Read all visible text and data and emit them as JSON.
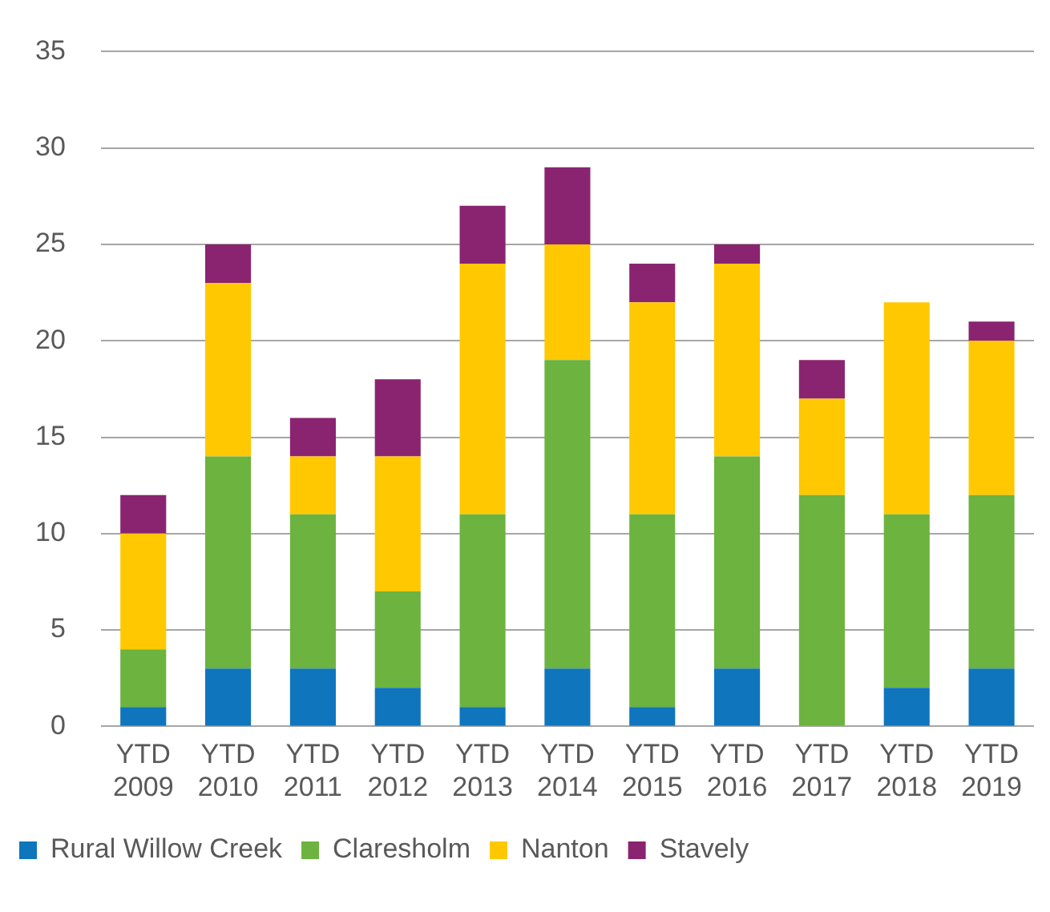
{
  "chart_data": {
    "type": "bar",
    "stacked": true,
    "categories": [
      "YTD 2009",
      "YTD 2010",
      "YTD 2011",
      "YTD 2012",
      "YTD 2013",
      "YTD 2014",
      "YTD 2015",
      "YTD 2016",
      "YTD 2017",
      "YTD 2018",
      "YTD 2019"
    ],
    "series": [
      {
        "name": "Rural Willow Creek",
        "color": "#0f75bd",
        "values": [
          1,
          3,
          3,
          2,
          1,
          3,
          1,
          3,
          0,
          2,
          3
        ]
      },
      {
        "name": "Claresholm",
        "color": "#6db33f",
        "values": [
          3,
          11,
          8,
          5,
          10,
          16,
          10,
          11,
          12,
          9,
          9
        ]
      },
      {
        "name": "Nanton",
        "color": "#ffc800",
        "values": [
          6,
          9,
          3,
          7,
          13,
          6,
          11,
          10,
          5,
          11,
          8
        ]
      },
      {
        "name": "Stavely",
        "color": "#8a2471",
        "values": [
          2,
          2,
          2,
          4,
          3,
          4,
          2,
          1,
          2,
          0,
          1
        ]
      }
    ],
    "ylim": [
      0,
      35
    ],
    "yticks": [
      0,
      5,
      10,
      15,
      20,
      25,
      30,
      35
    ],
    "grid": "y",
    "legend": "bottom"
  }
}
